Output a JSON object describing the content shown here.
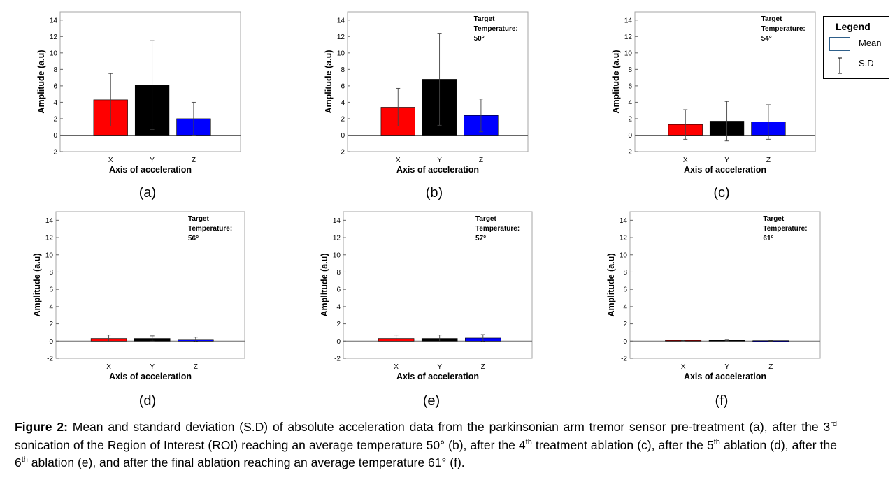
{
  "legend": {
    "title": "Legend",
    "mean_label": "Mean",
    "sd_label": "S.D"
  },
  "chart_data": [
    {
      "type": "bar",
      "label": "(a)",
      "categories": [
        "X",
        "Y",
        "Z"
      ],
      "values": [
        4.3,
        6.1,
        2.0
      ],
      "sd": [
        3.2,
        5.4,
        2.0
      ],
      "colors": [
        "#ff0000",
        "#000000",
        "#0000ff"
      ],
      "ylim": [
        -2,
        15
      ],
      "yticks": [
        -2,
        0,
        2,
        4,
        6,
        8,
        10,
        12,
        14
      ],
      "xlabel": "Axis of acceleration",
      "ylabel": "Amplitude (a.u)",
      "annotation": []
    },
    {
      "type": "bar",
      "label": "(b)",
      "categories": [
        "X",
        "Y",
        "Z"
      ],
      "values": [
        3.4,
        6.8,
        2.4
      ],
      "sd": [
        2.3,
        5.6,
        2.0
      ],
      "colors": [
        "#ff0000",
        "#000000",
        "#0000ff"
      ],
      "ylim": [
        -2,
        15
      ],
      "yticks": [
        -2,
        0,
        2,
        4,
        6,
        8,
        10,
        12,
        14
      ],
      "xlabel": "Axis of acceleration",
      "ylabel": "Amplitude (a.u)",
      "annotation": [
        "Target",
        "Temperature:",
        "50°"
      ]
    },
    {
      "type": "bar",
      "label": "(c)",
      "categories": [
        "X",
        "Y",
        "Z"
      ],
      "values": [
        1.3,
        1.7,
        1.6
      ],
      "sd": [
        1.8,
        2.4,
        2.1
      ],
      "colors": [
        "#ff0000",
        "#000000",
        "#0000ff"
      ],
      "ylim": [
        -2,
        15
      ],
      "yticks": [
        -2,
        0,
        2,
        4,
        6,
        8,
        10,
        12,
        14
      ],
      "xlabel": "Axis of acceleration",
      "ylabel": "Amplitude (a.u)",
      "annotation": [
        "Target",
        "Temperature:",
        "54°"
      ]
    },
    {
      "type": "bar",
      "label": "(d)",
      "categories": [
        "X",
        "Y",
        "Z"
      ],
      "values": [
        0.3,
        0.3,
        0.2
      ],
      "sd": [
        0.4,
        0.3,
        0.25
      ],
      "colors": [
        "#ff0000",
        "#000000",
        "#0000ff"
      ],
      "ylim": [
        -2,
        15
      ],
      "yticks": [
        -2,
        0,
        2,
        4,
        6,
        8,
        10,
        12,
        14
      ],
      "xlabel": "Axis of acceleration",
      "ylabel": "Amplitude (a.u)",
      "annotation": [
        "Target",
        "Temperature:",
        "56°"
      ]
    },
    {
      "type": "bar",
      "label": "(e)",
      "categories": [
        "X",
        "Y",
        "Z"
      ],
      "values": [
        0.3,
        0.3,
        0.35
      ],
      "sd": [
        0.4,
        0.4,
        0.4
      ],
      "colors": [
        "#ff0000",
        "#000000",
        "#0000ff"
      ],
      "ylim": [
        -2,
        15
      ],
      "yticks": [
        -2,
        0,
        2,
        4,
        6,
        8,
        10,
        12,
        14
      ],
      "xlabel": "Axis of acceleration",
      "ylabel": "Amplitude (a.u)",
      "annotation": [
        "Target",
        "Temperature:",
        "57°"
      ]
    },
    {
      "type": "bar",
      "label": "(f)",
      "categories": [
        "X",
        "Y",
        "Z"
      ],
      "values": [
        0.08,
        0.12,
        0.05
      ],
      "sd": [
        0.05,
        0.08,
        0.04
      ],
      "colors": [
        "#ff0000",
        "#000000",
        "#0000ff"
      ],
      "ylim": [
        -2,
        15
      ],
      "yticks": [
        -2,
        0,
        2,
        4,
        6,
        8,
        10,
        12,
        14
      ],
      "xlabel": "Axis of acceleration",
      "ylabel": "Amplitude (a.u)",
      "annotation": [
        "Target",
        "Temperature:",
        "61°"
      ]
    }
  ],
  "caption": {
    "figure_label": "Figure 2",
    "colon": ":",
    "t1": " Mean and standard deviation (S.D) of absolute acceleration data from the parkinsonian arm tremor sensor pre-treatment (a), after the 3",
    "s1": "rd",
    "t2": " sonication of the Region of Interest (ROI) reaching an average temperature 50° (b), after the 4",
    "s2": "th",
    "t3": " treatment ablation (c), after the 5",
    "s3": "th",
    "t4": " ablation (d), after the 6",
    "s4": "th",
    "t5": " ablation (e), and after the final ablation reaching an average temperature 61° (f)."
  }
}
